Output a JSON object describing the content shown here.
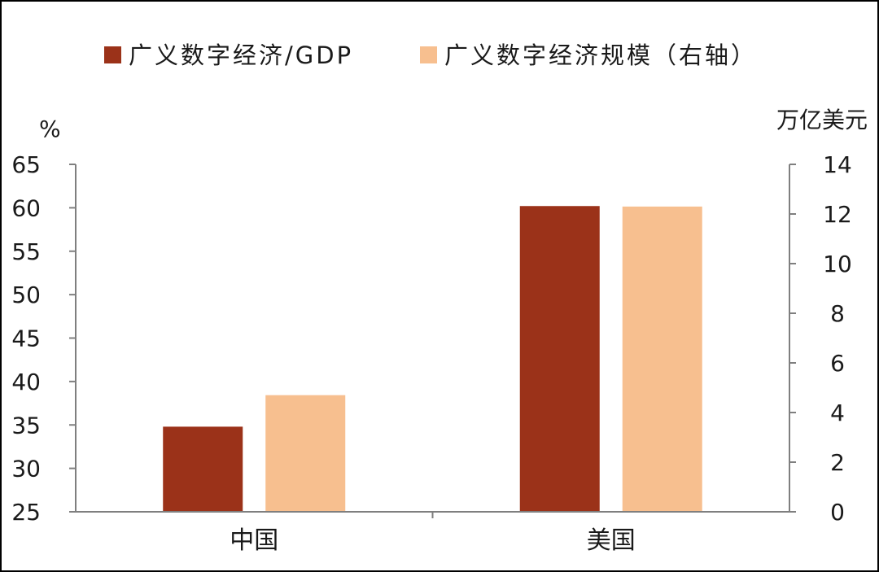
{
  "chart_data": {
    "type": "bar",
    "categories": [
      "中国",
      "美国"
    ],
    "series": [
      {
        "name": "广义数字经济/GDP",
        "axis": "left",
        "values": [
          34.8,
          60.2
        ],
        "color": "#9B3219"
      },
      {
        "name": "广义数字经济规模（右轴）",
        "axis": "right",
        "values": [
          4.7,
          12.3
        ],
        "color": "#F7BF8F"
      }
    ],
    "left_axis": {
      "unit": "%",
      "ylim": [
        25,
        65
      ],
      "ticks": [
        25,
        30,
        35,
        40,
        45,
        50,
        55,
        60,
        65
      ]
    },
    "right_axis": {
      "unit": "万亿美元",
      "ylim": [
        0,
        14
      ],
      "ticks": [
        0,
        2,
        4,
        6,
        8,
        10,
        12,
        14
      ]
    },
    "legend_position": "top",
    "grid": false
  }
}
